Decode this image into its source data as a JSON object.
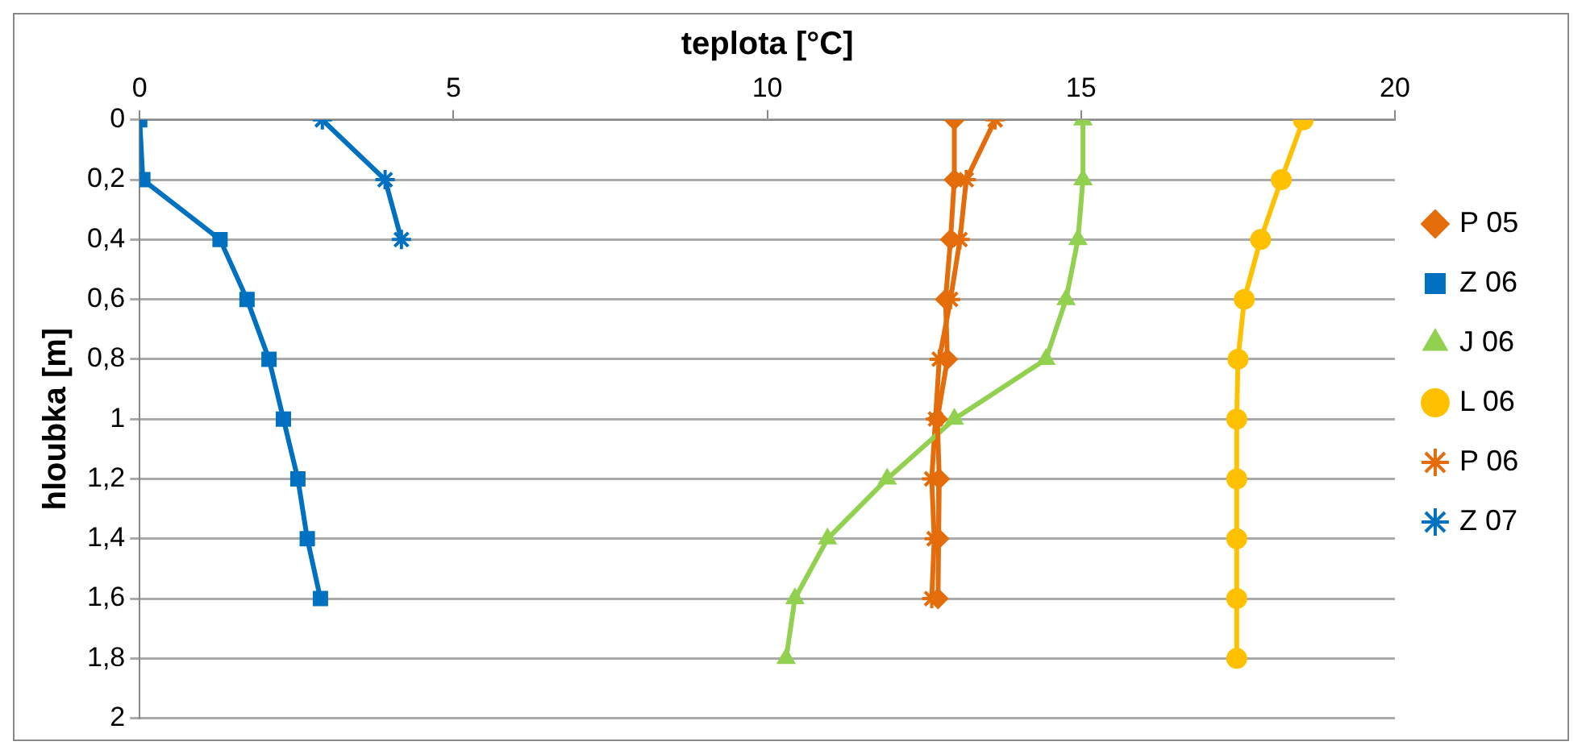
{
  "chart_data": {
    "type": "line",
    "title": "teplota [°C]",
    "ylabel": "hloubka [m]",
    "xlim": [
      0,
      20
    ],
    "xticks": [
      0,
      5,
      10,
      15,
      20
    ],
    "ylim": [
      2,
      0
    ],
    "yticks": [
      0,
      {
        "value": 0.2,
        "label": "0,2"
      },
      {
        "value": 0.4,
        "label": "0,4"
      },
      {
        "value": 0.6,
        "label": "0,6"
      },
      {
        "value": 0.8,
        "label": "0,8"
      },
      1,
      {
        "value": 1.2,
        "label": "1,2"
      },
      {
        "value": 1.4,
        "label": "1,4"
      },
      {
        "value": 1.6,
        "label": "1,6"
      },
      {
        "value": 1.8,
        "label": "1,8"
      },
      2
    ],
    "grid": "y",
    "legend": "right",
    "series": [
      {
        "name": "P 05",
        "color": "#e46c0a",
        "marker": "diamond",
        "x": [
          12.98,
          12.98,
          12.92,
          12.84,
          12.87,
          12.71,
          12.74,
          12.73,
          12.72
        ],
        "values": [
          0,
          0.2,
          0.4,
          0.6,
          0.8,
          1,
          1.2,
          1.4,
          1.6
        ]
      },
      {
        "name": "Z 06",
        "color": "#0070c0",
        "marker": "square",
        "x": [
          0,
          0.05,
          1.28,
          1.71,
          2.06,
          2.29,
          2.52,
          2.67,
          2.88
        ],
        "values": [
          0,
          0.2,
          0.4,
          0.6,
          0.8,
          1,
          1.2,
          1.4,
          1.6
        ]
      },
      {
        "name": "J 06",
        "color": "#92d050",
        "marker": "triangle",
        "x": [
          15.03,
          15.03,
          14.95,
          14.76,
          14.44,
          12.98,
          11.91,
          10.96,
          10.44,
          10.3
        ],
        "values": [
          0,
          0.2,
          0.4,
          0.6,
          0.8,
          1,
          1.2,
          1.4,
          1.6,
          1.8
        ]
      },
      {
        "name": "L 06",
        "color": "#ffc000",
        "marker": "circle",
        "x": [
          18.54,
          18.19,
          17.86,
          17.6,
          17.5,
          17.48,
          17.48,
          17.48,
          17.48,
          17.48
        ],
        "values": [
          0,
          0.2,
          0.4,
          0.6,
          0.8,
          1,
          1.2,
          1.4,
          1.6,
          1.8
        ]
      },
      {
        "name": "P 06",
        "color": "#e46c0a",
        "marker": "cross",
        "x": [
          13.63,
          13.17,
          13.07,
          12.92,
          12.74,
          12.68,
          12.62,
          12.66,
          12.62
        ],
        "values": [
          0,
          0.2,
          0.4,
          0.6,
          0.8,
          1,
          1.2,
          1.4,
          1.6
        ]
      },
      {
        "name": "Z 07",
        "color": "#0070c0",
        "marker": "cross",
        "x": [
          2.91,
          3.91,
          4.17
        ],
        "values": [
          0,
          0.2,
          0.4
        ]
      }
    ]
  }
}
